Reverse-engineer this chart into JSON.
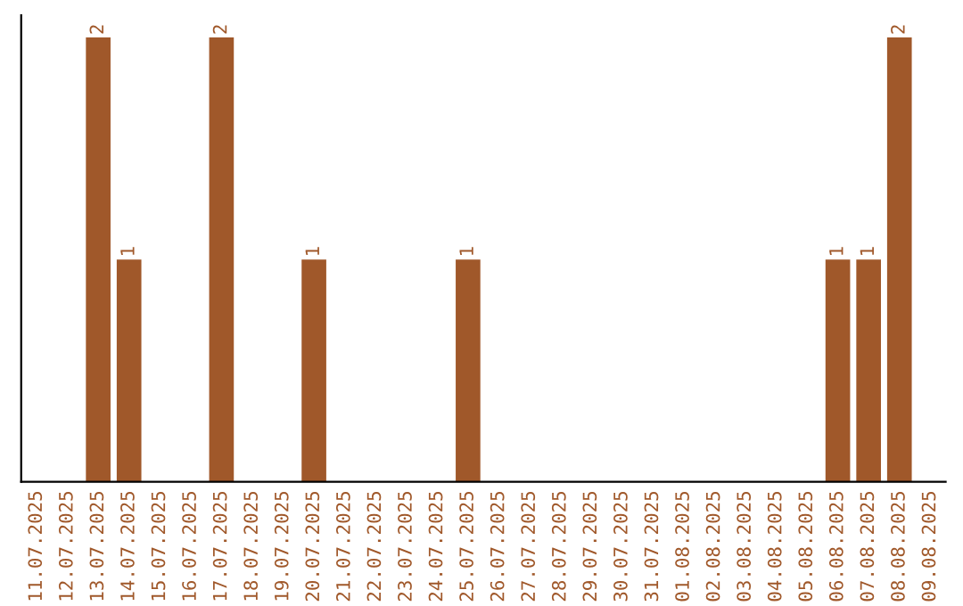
{
  "chart_data": {
    "type": "bar",
    "categories": [
      "11.07.2025",
      "12.07.2025",
      "13.07.2025",
      "14.07.2025",
      "15.07.2025",
      "16.07.2025",
      "17.07.2025",
      "18.07.2025",
      "19.07.2025",
      "20.07.2025",
      "21.07.2025",
      "22.07.2025",
      "23.07.2025",
      "24.07.2025",
      "25.07.2025",
      "26.07.2025",
      "27.07.2025",
      "28.07.2025",
      "29.07.2025",
      "30.07.2025",
      "31.07.2025",
      "01.08.2025",
      "02.08.2025",
      "03.08.2025",
      "04.08.2025",
      "05.08.2025",
      "06.08.2025",
      "07.08.2025",
      "08.08.2025",
      "09.08.2025"
    ],
    "values": [
      0,
      0,
      2,
      1,
      0,
      0,
      2,
      0,
      0,
      1,
      0,
      0,
      0,
      0,
      1,
      0,
      0,
      0,
      0,
      0,
      0,
      0,
      0,
      0,
      0,
      0,
      1,
      1,
      2,
      0
    ],
    "value_labels": [
      null,
      null,
      "2",
      "1",
      null,
      null,
      "2",
      null,
      null,
      "1",
      null,
      null,
      null,
      null,
      "1",
      null,
      null,
      null,
      null,
      null,
      null,
      null,
      null,
      null,
      null,
      null,
      "1",
      "1",
      "2",
      null
    ],
    "color": "#a0582a",
    "tick_labels": "x",
    "grid": false,
    "legend": false
  }
}
